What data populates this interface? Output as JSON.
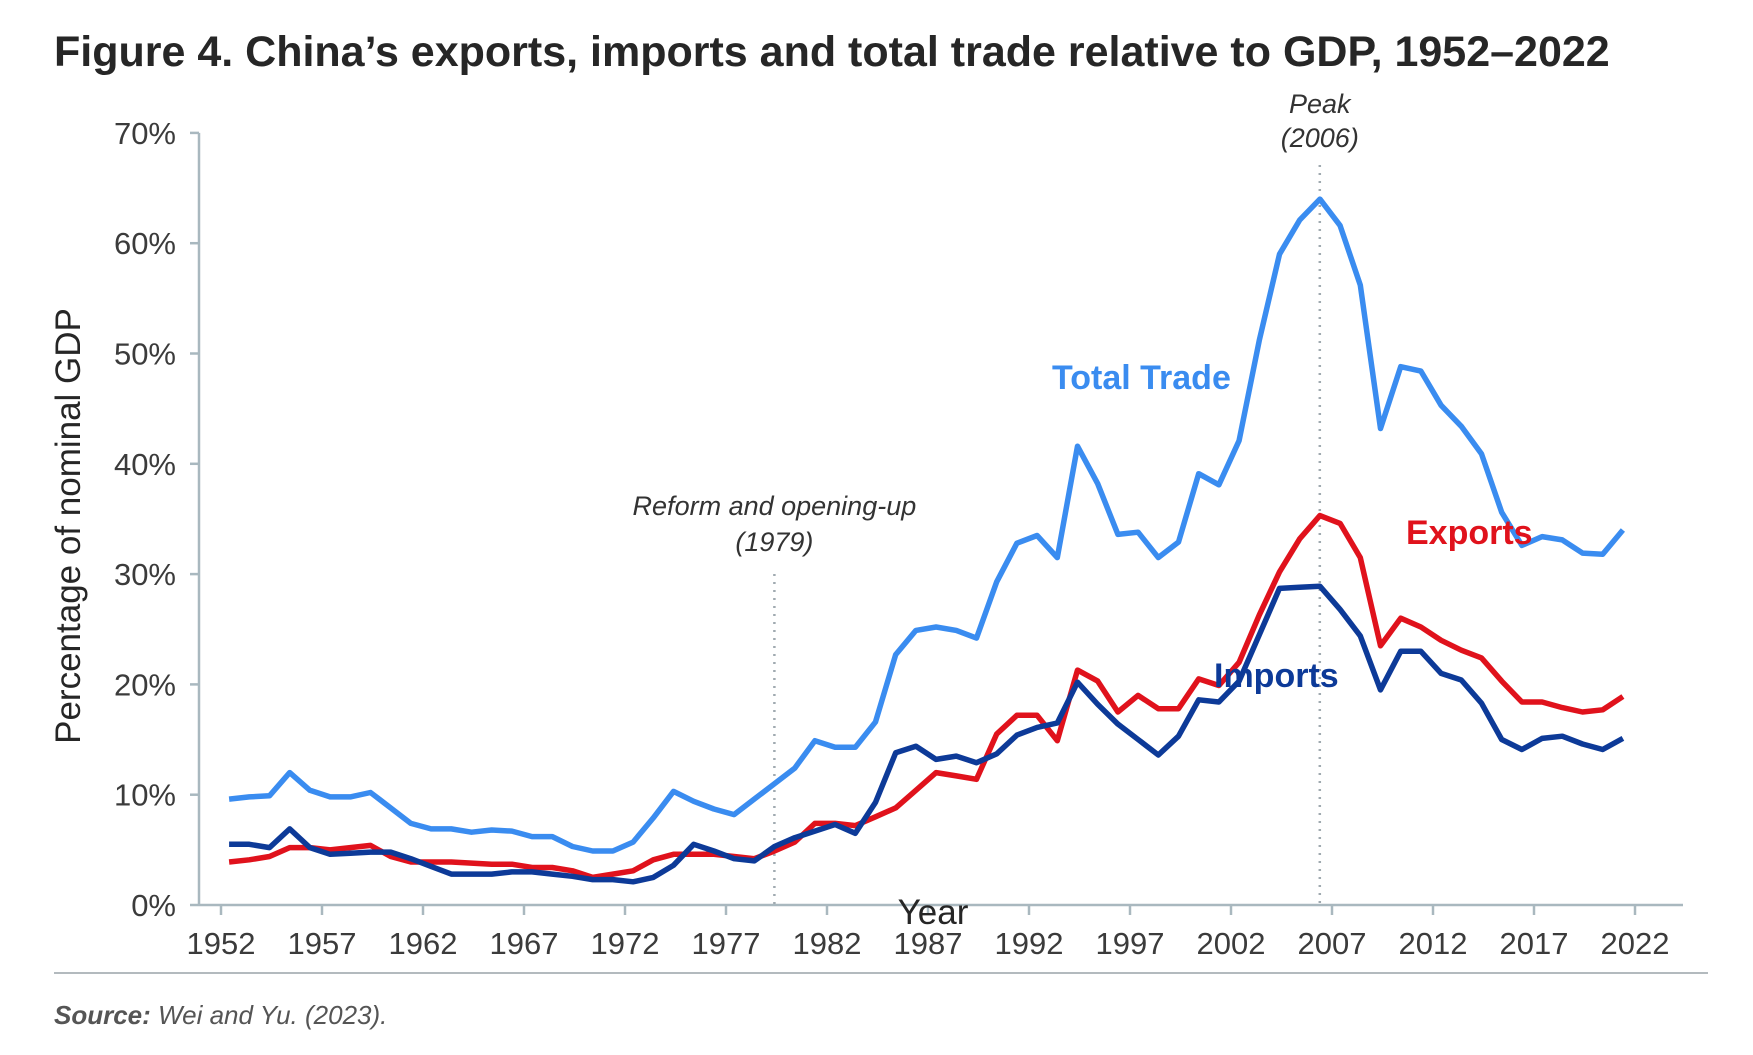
{
  "title": "Figure 4. China’s exports, imports and total trade relative to GDP, 1952–2022",
  "source_label": "Source:",
  "source_text": " Wei and Yu. (2023).",
  "chart_data": {
    "type": "line",
    "title": "Figure 4. China’s exports, imports and total trade relative to GDP, 1952–2022",
    "xlabel": "Year",
    "ylabel": "Percentage of nominal GDP",
    "ylim": [
      0,
      70
    ],
    "xlim": [
      1952,
      2022
    ],
    "xticks": [
      "1952",
      "1957",
      "1962",
      "1967",
      "1972",
      "1977",
      "1982",
      "1987",
      "1992",
      "1997",
      "2002",
      "2007",
      "2012",
      "2017",
      "2022"
    ],
    "yticks": [
      "0%",
      "10%",
      "20%",
      "30%",
      "40%",
      "50%",
      "60%",
      "70%"
    ],
    "grid": false,
    "x_start": 1952,
    "series": [
      {
        "name": "Total Trade",
        "color": "#3a8cf0",
        "values": [
          9.6,
          9.8,
          9.9,
          12.0,
          10.4,
          9.8,
          9.8,
          10.2,
          8.8,
          7.4,
          6.9,
          6.9,
          6.6,
          6.8,
          6.7,
          6.2,
          6.2,
          5.3,
          4.9,
          4.9,
          5.7,
          7.9,
          10.3,
          9.4,
          8.7,
          8.2,
          9.6,
          11.0,
          12.4,
          14.9,
          14.3,
          14.3,
          16.6,
          22.7,
          24.9,
          25.2,
          24.9,
          24.2,
          29.3,
          32.8,
          33.5,
          31.5,
          41.6,
          38.2,
          33.6,
          33.8,
          31.5,
          32.9,
          39.1,
          38.1,
          42.1,
          51.2,
          59.0,
          62.1,
          64.0,
          61.6,
          56.2,
          43.2,
          48.8,
          48.4,
          45.3,
          43.4,
          40.9,
          35.6,
          32.6,
          33.4,
          33.1,
          31.9,
          31.8,
          34.0
        ]
      },
      {
        "name": "Exports",
        "color": "#e0121c",
        "values": [
          3.9,
          4.1,
          4.4,
          5.2,
          5.2,
          5.0,
          5.2,
          5.4,
          4.4,
          3.9,
          3.9,
          3.9,
          3.8,
          3.7,
          3.7,
          3.4,
          3.4,
          3.1,
          2.5,
          2.8,
          3.1,
          4.1,
          4.6,
          4.6,
          4.6,
          4.4,
          4.2,
          4.9,
          5.7,
          7.4,
          7.4,
          7.2,
          8.0,
          8.8,
          10.4,
          12.0,
          11.7,
          11.4,
          15.5,
          17.2,
          17.2,
          14.9,
          21.3,
          20.3,
          17.5,
          19.0,
          17.8,
          17.8,
          20.5,
          19.9,
          22.0,
          26.3,
          30.2,
          33.2,
          35.3,
          34.6,
          31.5,
          23.5,
          26.0,
          25.2,
          24.0,
          23.1,
          22.4,
          20.3,
          18.4,
          18.4,
          17.9,
          17.5,
          17.7,
          18.9
        ]
      },
      {
        "name": "Imports",
        "color": "#0d3a98",
        "values": [
          5.5,
          5.5,
          5.2,
          6.9,
          5.2,
          4.6,
          4.7,
          4.8,
          4.8,
          4.2,
          3.5,
          2.8,
          2.8,
          2.8,
          3.0,
          3.0,
          2.8,
          2.6,
          2.3,
          2.3,
          2.1,
          2.5,
          3.6,
          5.5,
          4.9,
          4.2,
          4.0,
          5.3,
          6.1,
          6.7,
          7.3,
          6.5,
          9.3,
          13.8,
          14.4,
          13.2,
          13.5,
          12.9,
          13.7,
          15.4,
          16.1,
          16.5,
          20.2,
          18.2,
          16.4,
          15.0,
          13.6,
          15.3,
          18.6,
          18.4,
          20.3,
          24.5,
          28.7,
          28.8,
          28.9,
          26.8,
          24.4,
          19.5,
          23.0,
          23.0,
          21.0,
          20.4,
          18.3,
          15.0,
          14.1,
          15.1,
          15.3,
          14.6,
          14.1,
          15.1
        ]
      }
    ],
    "annotations": [
      {
        "year": 1979,
        "line1": "Reform and opening-up",
        "line2": "(1979)"
      },
      {
        "year": 2006,
        "line1": "Peak",
        "line2": "(2006)"
      }
    ]
  }
}
